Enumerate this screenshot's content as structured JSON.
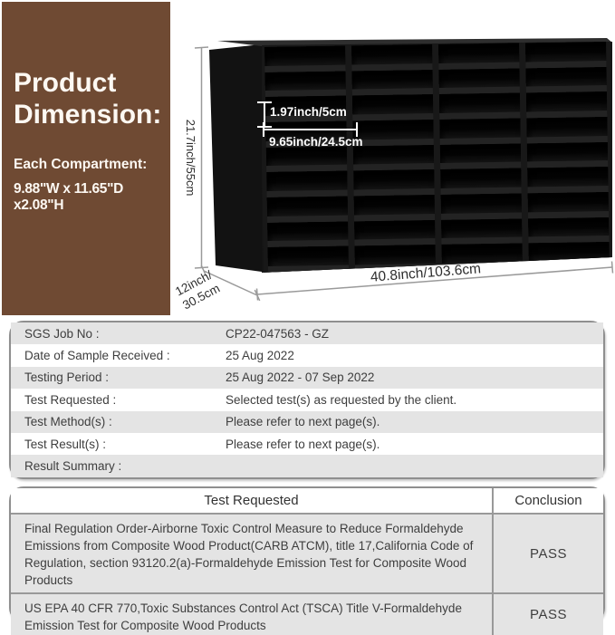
{
  "dimension_card": {
    "title": "Product Dimension:",
    "compartment_label": "Each Compartment:",
    "compartment_size": "9.88\"W x 11.65\"D x2.08\"H",
    "bg_color": "#6f4a33"
  },
  "shelf": {
    "columns": 4,
    "rows": 9,
    "annotations": {
      "compartment_height": "1.97inch/5cm",
      "compartment_width": "9.65inch/24.5cm",
      "unit_height": "21.7inch/55cm",
      "unit_depth": "12inch/\n30.5cm",
      "unit_width": "40.8inch/103.6cm"
    }
  },
  "report_info": {
    "rows": [
      {
        "label": "SGS Job No :",
        "value": "CP22-047563 - GZ"
      },
      {
        "label": "Date of Sample Received :",
        "value": "25 Aug 2022"
      },
      {
        "label": "Testing Period :",
        "value": "25 Aug 2022 - 07 Sep 2022"
      },
      {
        "label": "Test Requested :",
        "value": "Selected test(s) as requested by the client."
      },
      {
        "label": "Test Method(s) :",
        "value": "Please refer to next page(s)."
      },
      {
        "label": "Test Result(s) :",
        "value": "Please refer to next page(s)."
      },
      {
        "label": "Result Summary :",
        "value": ""
      }
    ]
  },
  "conclusion_table": {
    "header_test": "Test Requested",
    "header_conclusion": "Conclusion",
    "rows": [
      {
        "test": "Final Regulation Order-Airborne Toxic Control Measure to Reduce Formaldehyde Emissions from Composite Wood Product(CARB ATCM), title 17,California Code of Regulation, section 93120.2(a)-Formaldehyde Emission Test for Composite Wood Products",
        "conclusion": "PASS"
      },
      {
        "test": "US EPA 40 CFR 770,Toxic Substances Control Act (TSCA) Title V-Formaldehyde Emission Test for Composite Wood Products",
        "conclusion": "PASS"
      }
    ]
  }
}
